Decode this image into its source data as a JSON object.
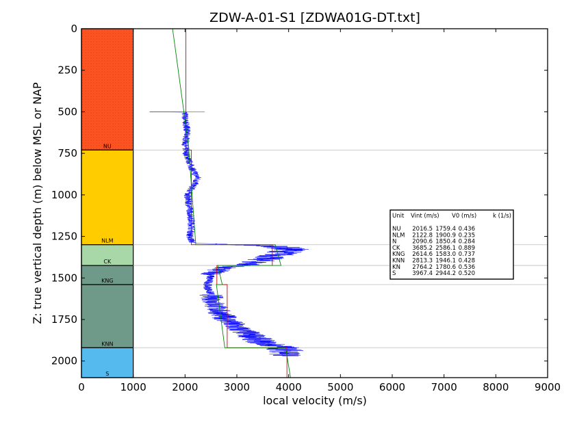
{
  "chart_data": {
    "type": "line",
    "title": "ZDW-A-01-S1 [ZDWA01G-DT.txt]",
    "xlabel": "local velocity (m/s)",
    "ylabel": "Z: true vertical depth (m) below MSL or NAP",
    "xlim": [
      0,
      9000
    ],
    "ylim": [
      2100,
      0
    ],
    "y_inverted": true,
    "x_ticks": [
      "0",
      "1000",
      "2000",
      "3000",
      "4000",
      "5000",
      "6000",
      "7000",
      "8000",
      "9000"
    ],
    "x_tick_values": [
      0,
      1000,
      2000,
      3000,
      4000,
      5000,
      6000,
      7000,
      8000,
      9000
    ],
    "y_ticks": [
      "0",
      "250",
      "500",
      "750",
      "1000",
      "1250",
      "1500",
      "1750",
      "2000"
    ],
    "y_tick_values": [
      0,
      250,
      500,
      750,
      1000,
      1250,
      1500,
      1750,
      2000
    ],
    "grid": false,
    "units": [
      {
        "name": "NU",
        "top": 0,
        "base": 730,
        "color": "#ff5522",
        "pattern": true,
        "vint": "2016.5",
        "v0": "1759.4",
        "k": "0.436",
        "vint_value": 2016.5,
        "v0_value": 1759.4,
        "k_value": 0.436
      },
      {
        "name": "NLM",
        "top": 730,
        "base": 1300,
        "color": "#ffcc00",
        "pattern": false,
        "vint": "2122.8",
        "v0": "1900.9",
        "k": "0.235",
        "vint_value": 2122.8,
        "v0_value": 1900.9,
        "k_value": 0.235
      },
      {
        "name": "CK",
        "top": 1300,
        "base": 1425,
        "color": "#a8d8a8",
        "pattern": false,
        "vint": "3685.2",
        "v0": "2586.1",
        "k": "0.889",
        "vint_value": 3685.2,
        "v0_value": 2586.1,
        "k_value": 0.889
      },
      {
        "name": "KNG",
        "top": 1425,
        "base": 1540,
        "color": "#6f9988",
        "pattern": false,
        "vint": "2614.6",
        "v0": "1583.0",
        "k": "0.737",
        "vint_value": 2614.6,
        "v0_value": 1583.0,
        "k_value": 0.737
      },
      {
        "name": "KNN",
        "top": 1540,
        "base": 1920,
        "color": "#6f9988",
        "pattern": false,
        "vint": "2813.3",
        "v0": "1946.1",
        "k": "0.428",
        "vint_value": 2813.3,
        "v0_value": 1946.1,
        "k_value": 0.428
      },
      {
        "name": "S",
        "top": 1920,
        "base": 2100,
        "color": "#55bbee",
        "pattern": false,
        "vint": "3967.4",
        "v0": "2944.2",
        "k": "0.520",
        "vint_value": 3967.4,
        "v0_value": 2944.2,
        "k_value": 0.52
      }
    ],
    "legend_rows": [
      {
        "unit": "NU",
        "vint": "2016.5",
        "v0": "1759.4",
        "k": "0.436"
      },
      {
        "unit": "NLM",
        "vint": "2122.8",
        "v0": "1900.9",
        "k": "0.235"
      },
      {
        "unit": "N",
        "vint": "2090.6",
        "v0": "1850.4",
        "k": "0.284"
      },
      {
        "unit": "CK",
        "vint": "3685.2",
        "v0": "2586.1",
        "k": "0.889"
      },
      {
        "unit": "KNG",
        "vint": "2614.6",
        "v0": "1583.0",
        "k": "0.737"
      },
      {
        "unit": "KNN",
        "vint": "2813.3",
        "v0": "1946.1",
        "k": "0.428"
      },
      {
        "unit": "KN",
        "vint": "2764.2",
        "v0": "1780.6",
        "k": "0.536"
      },
      {
        "unit": "S",
        "vint": "3967.4",
        "v0": "2944.2",
        "k": "0.520"
      }
    ],
    "legend_header": {
      "unit": "Unit",
      "vint": "Vint (m/s)",
      "v0": "V0 (m/s)",
      "k": "k (1/s)"
    },
    "legend_placement": "right-middle",
    "series": [
      {
        "color": "#0000ff",
        "style": "noisy-log"
      },
      {
        "color": "#cc0000",
        "style": "interval-velocity"
      },
      {
        "color": "#008800",
        "style": "linear-trend"
      }
    ],
    "log_trend": [
      {
        "z": 500,
        "v": 2000
      },
      {
        "z": 550,
        "v": 2000
      },
      {
        "z": 600,
        "v": 2040
      },
      {
        "z": 650,
        "v": 2030
      },
      {
        "z": 700,
        "v": 2000
      },
      {
        "z": 750,
        "v": 2020
      },
      {
        "z": 800,
        "v": 2080
      },
      {
        "z": 850,
        "v": 2150
      },
      {
        "z": 900,
        "v": 2250
      },
      {
        "z": 950,
        "v": 2150
      },
      {
        "z": 1000,
        "v": 2050
      },
      {
        "z": 1050,
        "v": 2070
      },
      {
        "z": 1100,
        "v": 2100
      },
      {
        "z": 1150,
        "v": 2120
      },
      {
        "z": 1200,
        "v": 2130
      },
      {
        "z": 1250,
        "v": 2090
      },
      {
        "z": 1290,
        "v": 2150
      },
      {
        "z": 1310,
        "v": 3800
      },
      {
        "z": 1330,
        "v": 4050
      },
      {
        "z": 1360,
        "v": 3800
      },
      {
        "z": 1390,
        "v": 3500
      },
      {
        "z": 1420,
        "v": 3200
      },
      {
        "z": 1440,
        "v": 2700
      },
      {
        "z": 1480,
        "v": 2500
      },
      {
        "z": 1550,
        "v": 2430
      },
      {
        "z": 1600,
        "v": 2500
      },
      {
        "z": 1650,
        "v": 2560
      },
      {
        "z": 1700,
        "v": 2650
      },
      {
        "z": 1750,
        "v": 2800
      },
      {
        "z": 1800,
        "v": 3000
      },
      {
        "z": 1850,
        "v": 3300
      },
      {
        "z": 1890,
        "v": 3500
      },
      {
        "z": 1920,
        "v": 3900
      },
      {
        "z": 1950,
        "v": 4000
      },
      {
        "z": 1970,
        "v": 3900
      }
    ]
  }
}
